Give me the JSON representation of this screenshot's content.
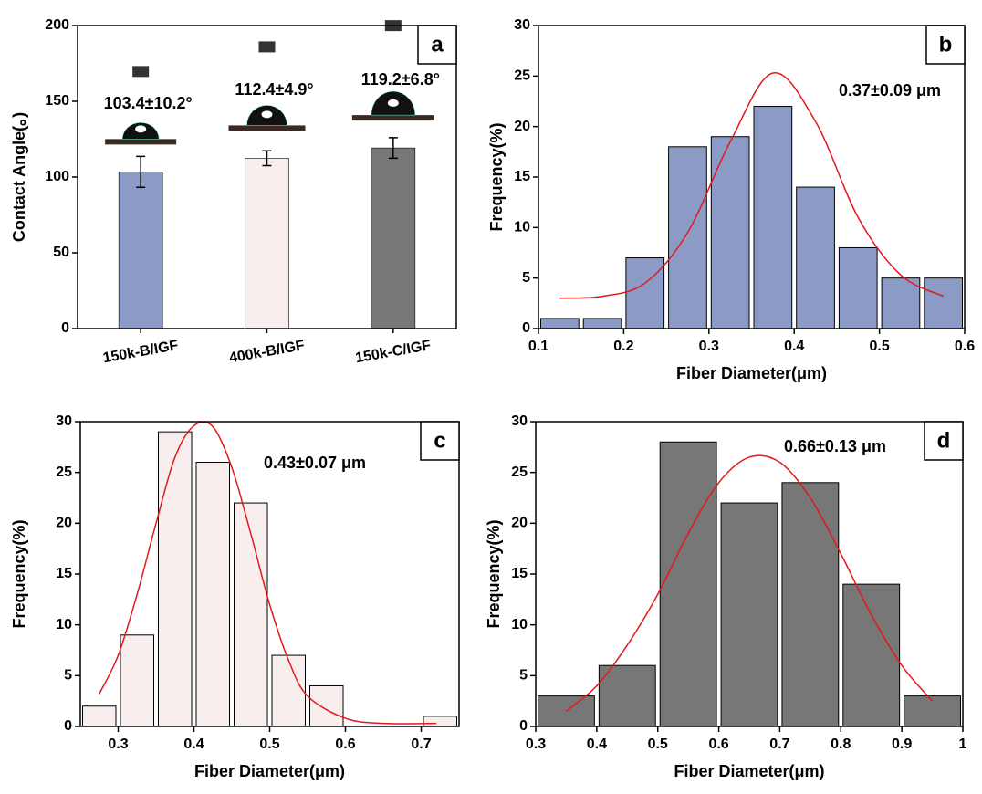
{
  "chart_data": [
    {
      "type": "bar",
      "panel_label": "a",
      "ylabel": "Contact Angle(。)",
      "categories": [
        "150k-B/IGF",
        "400k-B/IGF",
        "150k-C/IGF"
      ],
      "values": [
        103.4,
        112.4,
        119.2
      ],
      "errors": [
        10.2,
        4.9,
        6.8
      ],
      "value_labels": [
        "103.4±10.2°",
        "112.4±4.9°",
        "119.2±6.8°"
      ],
      "colors": [
        "#8b9bc6",
        "#f8eeee",
        "#777777"
      ],
      "ylim": [
        0,
        200
      ],
      "yticks": [
        0,
        50,
        100,
        150,
        200
      ]
    },
    {
      "type": "histogram",
      "panel_label": "b",
      "xlabel": "Fiber Diameter(μm)",
      "ylabel": "Frequency(%)",
      "annotation": "0.37±0.09 μm",
      "color": "#8b9bc6",
      "bins": [
        0.1,
        0.15,
        0.2,
        0.25,
        0.3,
        0.35,
        0.4,
        0.45,
        0.5,
        0.55,
        0.6
      ],
      "values": [
        1,
        1,
        7,
        18,
        19,
        22,
        14,
        8,
        5,
        5
      ],
      "fit": {
        "color": "#e3191b",
        "x": [
          0.125,
          0.175,
          0.225,
          0.275,
          0.325,
          0.375,
          0.425,
          0.475,
          0.525,
          0.575
        ],
        "values": [
          3.0,
          3.2,
          4.5,
          9.5,
          18.5,
          25.3,
          20.5,
          11,
          5.3,
          3.2
        ]
      },
      "xlim": [
        0.1,
        0.6
      ],
      "xticks": [
        0.1,
        0.2,
        0.3,
        0.4,
        0.5,
        0.6
      ],
      "ylim": [
        0,
        30
      ],
      "yticks": [
        0,
        5,
        10,
        15,
        20,
        25,
        30
      ]
    },
    {
      "type": "histogram",
      "panel_label": "c",
      "xlabel": "Fiber Diameter(μm)",
      "ylabel": "Frequency(%)",
      "annotation": "0.43±0.07 μm",
      "color": "#f8eeee",
      "bins": [
        0.25,
        0.3,
        0.35,
        0.4,
        0.45,
        0.5,
        0.55,
        0.6,
        0.65,
        0.7,
        0.75
      ],
      "values": [
        2,
        9,
        29,
        26,
        22,
        7,
        4,
        0,
        0,
        1
      ],
      "fit": {
        "color": "#e3191b",
        "x": [
          0.275,
          0.3,
          0.325,
          0.35,
          0.375,
          0.4,
          0.425,
          0.45,
          0.475,
          0.5,
          0.525,
          0.55,
          0.6,
          0.65,
          0.72
        ],
        "values": [
          3.2,
          7,
          13,
          20,
          26.5,
          29.6,
          29.5,
          25.5,
          19,
          12,
          6.5,
          3,
          0.8,
          0.3,
          0.3
        ]
      },
      "xlim": [
        0.25,
        0.75
      ],
      "xticks": [
        0.3,
        0.4,
        0.5,
        0.6,
        0.7
      ],
      "ylim": [
        0,
        30
      ],
      "yticks": [
        0,
        5,
        10,
        15,
        20,
        25,
        30
      ]
    },
    {
      "type": "histogram",
      "panel_label": "d",
      "xlabel": "Fiber Diameter(μm)",
      "ylabel": "Frequency(%)",
      "annotation": "0.66±0.13 μm",
      "color": "#777777",
      "bins": [
        0.3,
        0.4,
        0.5,
        0.6,
        0.7,
        0.8,
        0.9,
        1.0
      ],
      "values": [
        3,
        6,
        28,
        22,
        24,
        14,
        3
      ],
      "fit": {
        "color": "#e3191b",
        "x": [
          0.35,
          0.4,
          0.45,
          0.5,
          0.55,
          0.6,
          0.65,
          0.7,
          0.75,
          0.8,
          0.85,
          0.9,
          0.95
        ],
        "values": [
          1.5,
          4,
          8,
          13,
          19,
          24,
          26.5,
          26,
          22.5,
          17,
          11,
          6,
          2.5
        ]
      },
      "xlim": [
        0.3,
        1.0
      ],
      "xticks": [
        0.3,
        0.4,
        0.5,
        0.6,
        0.7,
        0.8,
        0.9,
        1.0
      ],
      "ylim": [
        0,
        30
      ],
      "yticks": [
        0,
        5,
        10,
        15,
        20,
        25,
        30
      ]
    }
  ]
}
